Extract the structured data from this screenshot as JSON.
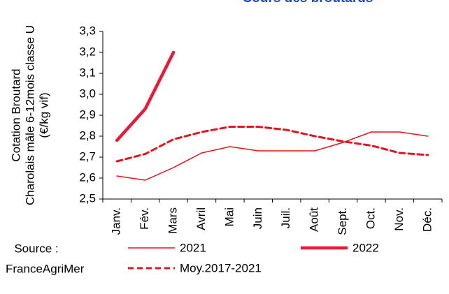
{
  "chart_data": {
    "type": "line",
    "title": "Cours des broutards",
    "ylabel": [
      "Cotation Broutard",
      "Charolais mâle 6-12mois classe U",
      "(€/kg vif)"
    ],
    "categories": [
      "Janv.",
      "Fév.",
      "Mars",
      "Avril",
      "Mai",
      "Juin",
      "Juil.",
      "Août",
      "Sept.",
      "Oct.",
      "Nov.",
      "Déc."
    ],
    "series": [
      {
        "name": "2021",
        "color": "#e8121f",
        "style": "thin",
        "values": [
          2.61,
          2.59,
          2.65,
          2.72,
          2.75,
          2.73,
          2.73,
          2.73,
          2.77,
          2.82,
          2.82,
          2.8
        ]
      },
      {
        "name": "2022",
        "color": "#f0163a",
        "style": "thick",
        "values": [
          2.78,
          2.93,
          3.2,
          null,
          null,
          null,
          null,
          null,
          null,
          null,
          null,
          null
        ]
      },
      {
        "name": "Moy.2017-2021",
        "color": "#e8121f",
        "style": "dashed",
        "values": [
          2.68,
          2.715,
          2.785,
          2.82,
          2.845,
          2.845,
          2.83,
          2.8,
          2.775,
          2.755,
          2.72,
          2.71
        ]
      }
    ],
    "ylim": [
      2.5,
      3.3
    ],
    "yticks": [
      {
        "value": 2.5,
        "label": "2,5"
      },
      {
        "value": 2.6,
        "label": "2,6"
      },
      {
        "value": 2.7,
        "label": "2,7"
      },
      {
        "value": 2.8,
        "label": "2,8"
      },
      {
        "value": 2.9,
        "label": "2,9"
      },
      {
        "value": 3.0,
        "label": "3,0"
      },
      {
        "value": 3.1,
        "label": "3,1"
      },
      {
        "value": 3.2,
        "label": "3,2"
      },
      {
        "value": 3.3,
        "label": "3,3"
      }
    ],
    "grid": false,
    "source": [
      "Source :",
      "FranceAgriMer"
    ]
  }
}
